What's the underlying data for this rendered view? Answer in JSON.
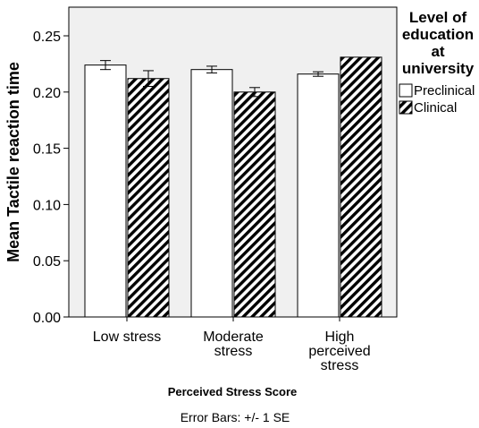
{
  "chart_data": {
    "type": "bar",
    "title": "",
    "xlabel": "Perceived Stress Score",
    "ylabel": "Mean Tactile reaction time",
    "ylim": [
      0,
      0.27
    ],
    "yticks": [
      "0.00",
      "0.05",
      "0.10",
      "0.15",
      "0.20",
      "0.25"
    ],
    "categories": [
      [
        "Low stress"
      ],
      [
        "Moderate",
        "stress"
      ],
      [
        "High",
        "perceived",
        "stress"
      ]
    ],
    "legend": {
      "title": [
        "Level of",
        "education",
        "at",
        "university"
      ],
      "placement": "right"
    },
    "series": [
      {
        "name": "Preclinical",
        "pattern": "white",
        "values": [
          0.224,
          0.22,
          0.216
        ],
        "se": [
          0.004,
          0.003,
          0.002
        ]
      },
      {
        "name": "Clinical",
        "pattern": "diagonal-hatch",
        "values": [
          0.212,
          0.2,
          0.231
        ],
        "se": [
          0.007,
          0.004,
          0.0
        ]
      }
    ],
    "grid": false,
    "footnote": "Error Bars: +/- 1 SE",
    "colors": {
      "plot_background": "#f0f0f0",
      "bar_fill": "#ffffff",
      "hatch": "#000000"
    }
  }
}
